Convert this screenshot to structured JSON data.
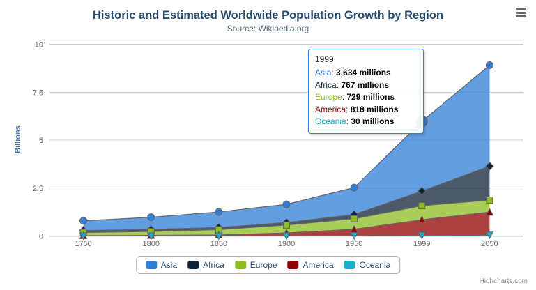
{
  "header": {
    "title": "Historic and Estimated Worldwide Population Growth by Region",
    "subtitle": "Source: Wikipedia.org"
  },
  "chart_data": {
    "type": "area",
    "stacking": "normal",
    "title": "Historic and Estimated Worldwide Population Growth by Region",
    "subtitle": "Source: Wikipedia.org",
    "ylabel": "Billions",
    "ylim": [
      0,
      10
    ],
    "yticks": [
      0,
      2.5,
      5,
      7.5,
      10
    ],
    "categories": [
      "1750",
      "1800",
      "1850",
      "1900",
      "1950",
      "1999",
      "2050"
    ],
    "values_unit": "millions",
    "grid": true,
    "legend_position": "bottom",
    "series": [
      {
        "name": "Asia",
        "color": "#2f7ed8",
        "marker": "circle",
        "values": [
          502,
          635,
          809,
          947,
          1402,
          3634,
          5268
        ]
      },
      {
        "name": "Africa",
        "color": "#0d233a",
        "marker": "diamond",
        "values": [
          106,
          107,
          111,
          133,
          221,
          767,
          1766
        ]
      },
      {
        "name": "Europe",
        "color": "#8bbc21",
        "marker": "square",
        "values": [
          163,
          203,
          276,
          408,
          547,
          729,
          628
        ]
      },
      {
        "name": "America",
        "color": "#910000",
        "marker": "triangle",
        "values": [
          18,
          31,
          54,
          156,
          339,
          818,
          1201
        ]
      },
      {
        "name": "Oceania",
        "color": "#1aadce",
        "marker": "triangle-down",
        "values": [
          2,
          2,
          2,
          6,
          13,
          30,
          46
        ]
      }
    ],
    "hovered_point": {
      "series": "Asia",
      "category": "1999"
    }
  },
  "tooltip": {
    "header": "1999",
    "rows": [
      {
        "series": "Asia",
        "value": "3,634 millions"
      },
      {
        "series": "Africa",
        "value": "767 millions"
      },
      {
        "series": "Europe",
        "value": "729 millions"
      },
      {
        "series": "America",
        "value": "818 millions"
      },
      {
        "series": "Oceania",
        "value": "30 millions"
      }
    ]
  },
  "legend": {
    "items": [
      "Asia",
      "Africa",
      "Europe",
      "America",
      "Oceania"
    ]
  },
  "credit": {
    "label": "Highcharts.com"
  },
  "style_colors": {
    "title": "#274b6d",
    "axis_label": "#666666",
    "grid_line": "#cccccc",
    "axis_line": "#c0d0e0",
    "series_outline": "#666666",
    "tooltip_border": "#2f7ed8"
  }
}
